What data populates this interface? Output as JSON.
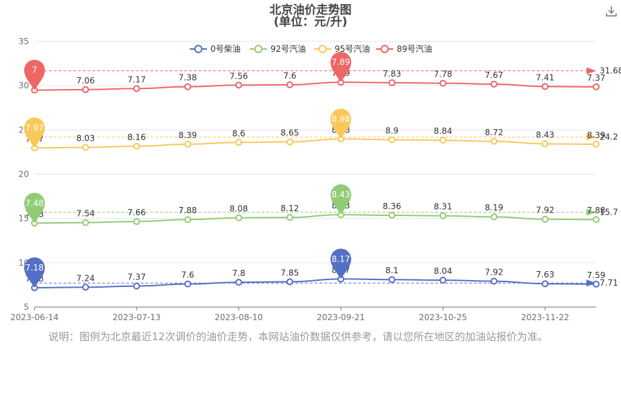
{
  "icons": {
    "download": "download-icon"
  },
  "note": "说明：图例为北京最近12次调价的油价走势，本网站油价数据仅供参考，请以您所在地区的加油站报价为准。",
  "chart_data": {
    "type": "line",
    "title": "北京油价走势图",
    "subtitle": "(单位：元/升)",
    "xlabel": "",
    "ylabel": "",
    "ylim": [
      5,
      35
    ],
    "yticks": [
      5,
      10,
      15,
      20,
      25,
      30,
      35
    ],
    "xticks": [
      "2023-06-14",
      "2023-07-13",
      "2023-08-10",
      "2023-09-21",
      "2023-10-25",
      "2023-11-22"
    ],
    "grid": true,
    "legend_position": "top",
    "series": [
      {
        "name": "0号柴油",
        "color": "#5470c6",
        "values": [
          7.18,
          7.24,
          7.37,
          7.6,
          7.8,
          7.85,
          8.17,
          8.1,
          8.04,
          7.92,
          7.63,
          7.59
        ],
        "offset": 0,
        "max": 8.17,
        "min": 7.18,
        "average": 7.71,
        "end_label": "7.71"
      },
      {
        "name": "92号汽油",
        "color": "#91cc75",
        "values": [
          7.48,
          7.54,
          7.66,
          7.88,
          8.08,
          8.12,
          8.43,
          8.36,
          8.31,
          8.19,
          7.92,
          7.88
        ],
        "offset": 7,
        "max": 8.43,
        "min": 7.48,
        "average": 15.7,
        "end_label": "15.7"
      },
      {
        "name": "95号汽油",
        "color": "#fac858",
        "values": [
          7.97,
          8.03,
          8.16,
          8.39,
          8.6,
          8.65,
          8.98,
          8.9,
          8.84,
          8.72,
          8.43,
          8.39
        ],
        "offset": 15,
        "max": 8.98,
        "min": 7.97,
        "average": 24.2,
        "end_label": "24.2"
      },
      {
        "name": "89号汽油",
        "color": "#ee6666",
        "values": [
          7.0,
          7.06,
          7.17,
          7.38,
          7.56,
          7.6,
          7.89,
          7.83,
          7.78,
          7.67,
          7.41,
          7.37
        ],
        "offset": 22.5,
        "max": 7.89,
        "min": 7.0,
        "average": 31.68,
        "end_label": "31.68"
      }
    ]
  }
}
